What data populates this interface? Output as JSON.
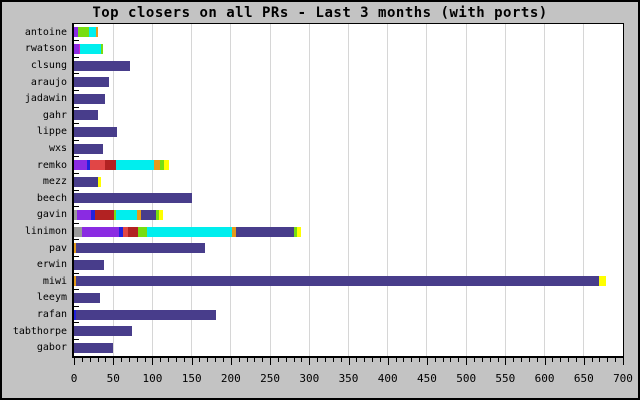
{
  "title": "Top closers on all PRs - Last 3 months (with ports)",
  "colors": {
    "background": "#c3c3c3",
    "plot_background": "#ffffff",
    "grid": "#d6d6d6",
    "frame": "#000000",
    "palette": {
      "main": "#483d8b",
      "purple": "#8a2be2",
      "blue": "#2222dd",
      "red": "#e14646",
      "brick": "#b22222",
      "cyan": "#00eeee",
      "orange": "#e39b1c",
      "green": "#77dd11",
      "yellow": "#ffff00",
      "gray": "#999999",
      "magenta": "#cc22cc"
    }
  },
  "chart_data": {
    "type": "bar",
    "orientation": "horizontal",
    "stacked": true,
    "title": "Top closers on all PRs - Last 3 months (with ports)",
    "xlabel": "",
    "ylabel": "",
    "xlim": [
      0,
      700
    ],
    "x_major_step": 50,
    "x_minor_step": 10,
    "x_tick_labels": [
      0,
      50,
      100,
      150,
      200,
      250,
      300,
      350,
      400,
      450,
      500,
      550,
      600,
      650,
      700
    ],
    "grid": true,
    "legend": "none",
    "categories": [
      "antoine",
      "rwatson",
      "clsung",
      "araujo",
      "jadawin",
      "gahr",
      "lippe",
      "wxs",
      "remko",
      "mezz",
      "beech",
      "gavin",
      "linimon",
      "pav",
      "erwin",
      "miwi",
      "leeym",
      "rafan",
      "tabthorpe",
      "gabor"
    ],
    "bars": [
      {
        "name": "antoine",
        "total": 31,
        "segments": [
          {
            "color": "purple",
            "value": 5
          },
          {
            "color": "green",
            "value": 14
          },
          {
            "color": "cyan",
            "value": 9
          },
          {
            "color": "orange",
            "value": 3
          }
        ]
      },
      {
        "name": "rwatson",
        "total": 37,
        "segments": [
          {
            "color": "purple",
            "value": 6
          },
          {
            "color": "magenta",
            "value": 2
          },
          {
            "color": "cyan",
            "value": 26
          },
          {
            "color": "green",
            "value": 3
          }
        ]
      },
      {
        "name": "clsung",
        "total": 71,
        "segments": [
          {
            "color": "main",
            "value": 71
          }
        ]
      },
      {
        "name": "araujo",
        "total": 45,
        "segments": [
          {
            "color": "main",
            "value": 45
          }
        ]
      },
      {
        "name": "jadawin",
        "total": 40,
        "segments": [
          {
            "color": "main",
            "value": 40
          }
        ]
      },
      {
        "name": "gahr",
        "total": 30,
        "segments": [
          {
            "color": "main",
            "value": 30
          }
        ]
      },
      {
        "name": "lippe",
        "total": 55,
        "segments": [
          {
            "color": "main",
            "value": 55
          }
        ]
      },
      {
        "name": "wxs",
        "total": 37,
        "segments": [
          {
            "color": "main",
            "value": 37
          }
        ]
      },
      {
        "name": "remko",
        "total": 121,
        "segments": [
          {
            "color": "purple",
            "value": 17
          },
          {
            "color": "blue",
            "value": 4
          },
          {
            "color": "red",
            "value": 19
          },
          {
            "color": "brick",
            "value": 14
          },
          {
            "color": "cyan",
            "value": 48
          },
          {
            "color": "orange",
            "value": 8
          },
          {
            "color": "green",
            "value": 5
          },
          {
            "color": "yellow",
            "value": 6
          }
        ]
      },
      {
        "name": "mezz",
        "total": 34,
        "segments": [
          {
            "color": "main",
            "value": 30
          },
          {
            "color": "yellow",
            "value": 4
          }
        ]
      },
      {
        "name": "beech",
        "total": 150,
        "segments": [
          {
            "color": "main",
            "value": 150
          }
        ]
      },
      {
        "name": "gavin",
        "total": 114,
        "segments": [
          {
            "color": "gray",
            "value": 4
          },
          {
            "color": "purple",
            "value": 18
          },
          {
            "color": "blue",
            "value": 5
          },
          {
            "color": "brick",
            "value": 24
          },
          {
            "color": "green",
            "value": 3
          },
          {
            "color": "cyan",
            "value": 27
          },
          {
            "color": "orange",
            "value": 4
          },
          {
            "color": "main",
            "value": 20
          },
          {
            "color": "green",
            "value": 4
          },
          {
            "color": "yellow",
            "value": 5
          }
        ]
      },
      {
        "name": "linimon",
        "total": 289,
        "segments": [
          {
            "color": "gray",
            "value": 10
          },
          {
            "color": "purple",
            "value": 47
          },
          {
            "color": "blue",
            "value": 6
          },
          {
            "color": "red",
            "value": 6
          },
          {
            "color": "brick",
            "value": 12
          },
          {
            "color": "green",
            "value": 12
          },
          {
            "color": "cyan",
            "value": 108
          },
          {
            "color": "orange",
            "value": 6
          },
          {
            "color": "main",
            "value": 74
          },
          {
            "color": "green",
            "value": 4
          },
          {
            "color": "yellow",
            "value": 4
          }
        ]
      },
      {
        "name": "pav",
        "total": 167,
        "segments": [
          {
            "color": "orange",
            "value": 2
          },
          {
            "color": "main",
            "value": 165
          }
        ]
      },
      {
        "name": "erwin",
        "total": 38,
        "segments": [
          {
            "color": "main",
            "value": 38
          }
        ]
      },
      {
        "name": "miwi",
        "total": 678,
        "segments": [
          {
            "color": "orange",
            "value": 2
          },
          {
            "color": "main",
            "value": 668
          },
          {
            "color": "yellow",
            "value": 8
          }
        ]
      },
      {
        "name": "leeym",
        "total": 33,
        "segments": [
          {
            "color": "main",
            "value": 33
          }
        ]
      },
      {
        "name": "rafan",
        "total": 181,
        "segments": [
          {
            "color": "blue",
            "value": 3
          },
          {
            "color": "main",
            "value": 178
          }
        ]
      },
      {
        "name": "tabthorpe",
        "total": 74,
        "segments": [
          {
            "color": "main",
            "value": 74
          }
        ]
      },
      {
        "name": "gabor",
        "total": 50,
        "segments": [
          {
            "color": "main",
            "value": 50
          }
        ]
      }
    ]
  }
}
